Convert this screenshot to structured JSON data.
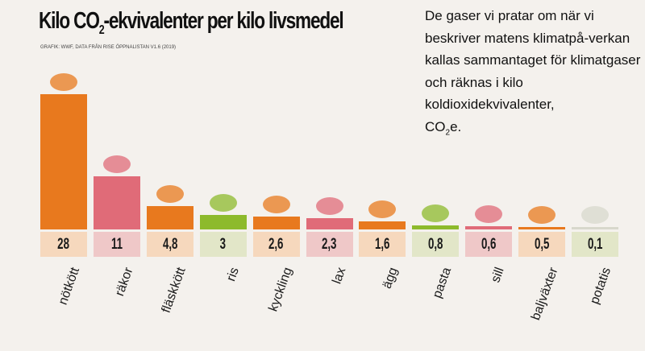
{
  "header": {
    "title_pre": "Kilo CO",
    "title_sub": "2",
    "title_post": "-ekvivalenter per kilo livsmedel",
    "source": "GRAFIK: WWF, DATA FRÅN RISE ÖPPNALISTAN V1.6 (2019)"
  },
  "description": {
    "text": "De gaser vi pratar om när vi beskriver matens klimatpå-verkan kallas sammantaget för klimatgaser och räknas i kilo koldioxidekvivalenter,",
    "co": "CO",
    "sub": "2",
    "end": "e."
  },
  "colors": {
    "orange": "#e8791e",
    "pink": "#e06b78",
    "green": "#8dba2c",
    "grey": "#d8d8cc",
    "orange_light": "#f6d8bd",
    "pink_light": "#efc8c8",
    "green_light": "#e2e6c8"
  },
  "chart_data": {
    "type": "bar",
    "title": "Kilo CO2-ekvivalenter per kilo livsmedel",
    "xlabel": "",
    "ylabel": "",
    "categories": [
      "nötkött",
      "räkor",
      "fläskkött",
      "ris",
      "kyckling",
      "lax",
      "ägg",
      "pasta",
      "sill",
      "baljväxter",
      "potatis"
    ],
    "values": [
      28,
      11,
      4.8,
      3,
      2.6,
      2.3,
      1.6,
      0.8,
      0.6,
      0.5,
      0.1
    ],
    "labels": [
      "28",
      "11",
      "4,8",
      "3",
      "2,6",
      "2,3",
      "1,6",
      "0,8",
      "0,6",
      "0,5",
      "0,1"
    ],
    "bar_colors": [
      "orange",
      "pink",
      "orange",
      "green",
      "orange",
      "pink",
      "orange",
      "green",
      "pink",
      "orange",
      "grey"
    ],
    "icons": [
      "steak-icon",
      "shrimp-icon",
      "sausage-icon",
      "rice-icon",
      "chicken-leg-icon",
      "salmon-icon",
      "egg-icon",
      "pasta-icon",
      "fish-icon",
      "beans-icon",
      "potato-icon"
    ],
    "ylim": [
      0,
      28
    ]
  }
}
